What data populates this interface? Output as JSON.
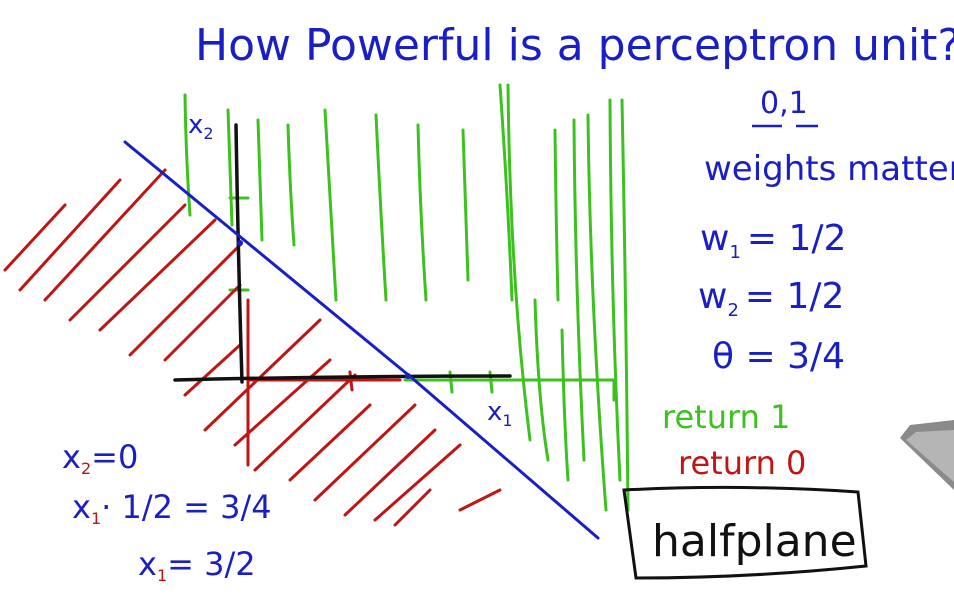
{
  "title": "How Powerful is a perceptron unit?",
  "colors": {
    "blue": "#1a1fc4",
    "green": "#3cc21e",
    "red": "#c01515",
    "black": "#111111"
  },
  "axes": {
    "x_label": "x",
    "x_sub": "1",
    "y_label": "x",
    "y_sub": "2"
  },
  "notes": {
    "inputs": "0,1",
    "weights_matter": "weights matter",
    "w1_name": "w",
    "w1_sub": "1",
    "w1_value": "= 1/2",
    "w2_name": "w",
    "w2_sub": "2",
    "w2_value": "= 1/2",
    "theta": "θ = 3/4",
    "return_1": "return 1",
    "return_0": "return 0",
    "halfplane": "halfplane"
  },
  "derivation": {
    "line1_var": "x",
    "line1_sub": "2",
    "line1_rest": "=0",
    "line2_var": "x",
    "line2_sub": "1",
    "line2_rest": "· 1/2  = 3/4",
    "line3_var": "x",
    "line3_sub": "1",
    "line3_rest": "= 3/2"
  }
}
